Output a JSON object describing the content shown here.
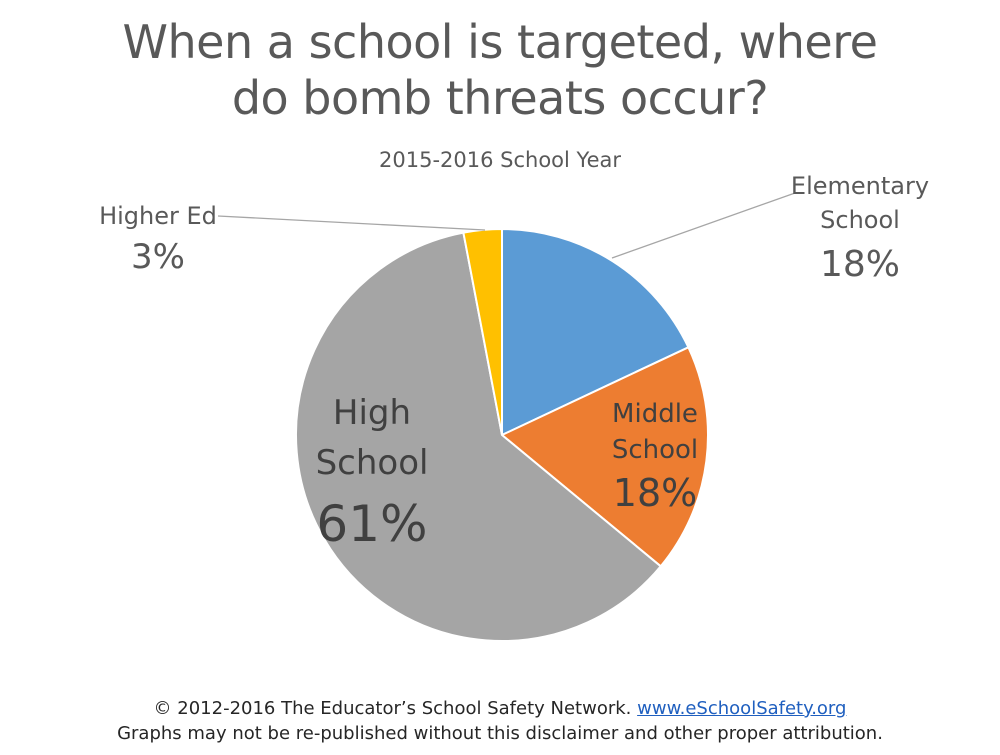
{
  "chart_data": {
    "type": "pie",
    "title_lines": [
      "When a school is targeted, where",
      "do bomb threats occur?"
    ],
    "subtitle": "2015-2016 School Year",
    "slices": [
      {
        "name_lines": [
          "Elementary",
          "School"
        ],
        "label": "18%",
        "value": 18,
        "color": "#5b9bd5"
      },
      {
        "name_lines": [
          "Middle",
          "School"
        ],
        "label": "18%",
        "value": 18,
        "color": "#ed7d31"
      },
      {
        "name_lines": [
          "High",
          "School"
        ],
        "label": "61%",
        "value": 61,
        "color": "#a5a5a5"
      },
      {
        "name_lines": [
          "Higher Ed"
        ],
        "label": "3%",
        "value": 3,
        "color": "#ffc000"
      }
    ]
  },
  "footer": {
    "line1_prefix": "© 2012-2016 The Educator’s School Safety Network.",
    "link": "www.eSchoolSafety.org",
    "line2": "Graphs may not be re-published without this disclaimer and other proper attribution."
  }
}
